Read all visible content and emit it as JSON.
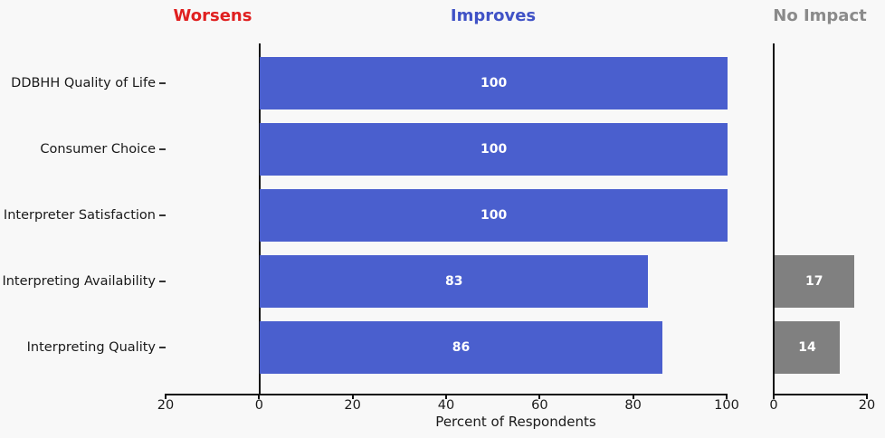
{
  "headers": [
    {
      "text": "Worsens",
      "color": "#e02020"
    },
    {
      "text": "Improves",
      "color": "#4052c6"
    },
    {
      "text": "No Impact",
      "color": "#8a8a8a"
    }
  ],
  "chart_data": {
    "type": "bar",
    "orientation": "horizontal",
    "xlabel": "Percent of Respondents",
    "categories": [
      "DDBHH Quality of Life",
      "Consumer Choice",
      "Interpreter Satisfaction",
      "Interpreting Availability",
      "Interpreting Quality"
    ],
    "series": [
      {
        "name": "Worsens",
        "panel": "main",
        "direction": "left",
        "color": "#e02020",
        "values": [
          0,
          0,
          0,
          0,
          0
        ]
      },
      {
        "name": "Improves",
        "panel": "main",
        "direction": "right",
        "color": "#4a5fce",
        "values": [
          100,
          100,
          100,
          83,
          86
        ]
      },
      {
        "name": "No Impact",
        "panel": "secondary",
        "direction": "right",
        "color": "#808080",
        "values": [
          0,
          0,
          0,
          17,
          14
        ]
      }
    ],
    "bar_value_label_color": "#ffffff",
    "axes": {
      "main": {
        "range": [
          -20,
          100
        ],
        "ticks": [
          -20,
          0,
          20,
          40,
          60,
          80,
          100
        ],
        "tick_labels": [
          "20",
          "0",
          "20",
          "40",
          "60",
          "80",
          "100"
        ]
      },
      "secondary": {
        "range": [
          0,
          20
        ],
        "ticks": [
          0,
          20
        ],
        "tick_labels": [
          "0",
          "20"
        ]
      }
    },
    "grid": false,
    "legend": "none (panel headers act as series labels)",
    "background": "#f8f8f8"
  }
}
